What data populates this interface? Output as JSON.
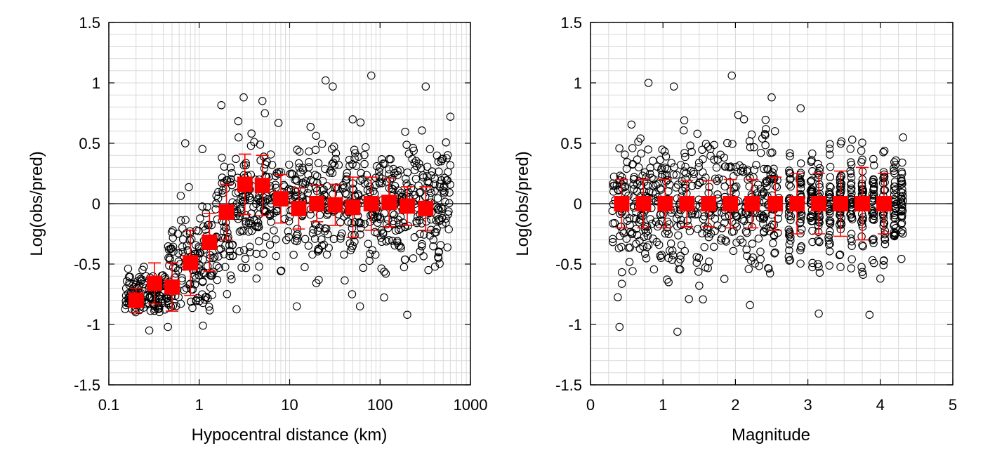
{
  "chart_data": [
    {
      "type": "scatter",
      "title": "",
      "xlabel": "Hypocentral distance (km)",
      "ylabel": "Log(obs/pred)",
      "xscale": "log",
      "xlim": [
        0.1,
        1000
      ],
      "ylim": [
        -1.5,
        1.5
      ],
      "xticks": [
        "0.1",
        "1",
        "10",
        "100",
        "1000"
      ],
      "yticks": [
        "-1.5",
        "-1",
        "-0.5",
        "0",
        "0.5",
        "1",
        "1.5"
      ],
      "grid": true,
      "reference_line_y": 0,
      "scatter_marker": "open-circle",
      "scatter_color": "#000000",
      "binned_marker": "filled-square",
      "binned_color": "#ff0000",
      "scatter_cloud": [
        {
          "x_range": [
            0.15,
            0.45
          ],
          "y_center": -0.78,
          "y_spread": 0.12
        },
        {
          "x_range": [
            0.45,
            1.5
          ],
          "y_center": -0.5,
          "y_spread": 0.25
        },
        {
          "x_range": [
            1.5,
            3.0
          ],
          "y_center": -0.15,
          "y_spread": 0.3
        },
        {
          "x_range": [
            3.0,
            600
          ],
          "y_center": 0.0,
          "y_spread": 0.25
        }
      ],
      "scatter_outliers": [
        {
          "x": 0.7,
          "y": 0.5
        },
        {
          "x": 3.1,
          "y": 0.88
        },
        {
          "x": 5.0,
          "y": 0.85
        },
        {
          "x": 25,
          "y": 1.02
        },
        {
          "x": 30,
          "y": 0.97
        },
        {
          "x": 80,
          "y": 1.06
        },
        {
          "x": 320,
          "y": 0.97
        },
        {
          "x": 200,
          "y": -0.92
        },
        {
          "x": 60,
          "y": -0.85
        },
        {
          "x": 0.45,
          "y": -1.02
        },
        {
          "x": 0.28,
          "y": -1.05
        },
        {
          "x": 1.1,
          "y": -1.01
        },
        {
          "x": 12,
          "y": -0.85
        },
        {
          "x": 600,
          "y": 0.72
        }
      ],
      "binned_means": [
        {
          "x": 0.2,
          "y": -0.8,
          "err": 0.1
        },
        {
          "x": 0.32,
          "y": -0.66,
          "err": 0.17
        },
        {
          "x": 0.5,
          "y": -0.69,
          "err": 0.2
        },
        {
          "x": 0.8,
          "y": -0.49,
          "err": 0.27
        },
        {
          "x": 1.3,
          "y": -0.32,
          "err": 0.24
        },
        {
          "x": 2.0,
          "y": -0.07,
          "err": 0.23
        },
        {
          "x": 3.2,
          "y": 0.16,
          "err": 0.25
        },
        {
          "x": 5.0,
          "y": 0.15,
          "err": 0.25
        },
        {
          "x": 8.0,
          "y": 0.04,
          "err": 0.2
        },
        {
          "x": 12.6,
          "y": -0.04,
          "err": 0.17
        },
        {
          "x": 20,
          "y": 0.0,
          "err": 0.15
        },
        {
          "x": 32,
          "y": -0.01,
          "err": 0.17
        },
        {
          "x": 50,
          "y": -0.03,
          "err": 0.25
        },
        {
          "x": 80,
          "y": 0.0,
          "err": 0.22
        },
        {
          "x": 126,
          "y": 0.01,
          "err": 0.2
        },
        {
          "x": 200,
          "y": -0.02,
          "err": 0.16
        },
        {
          "x": 320,
          "y": -0.04,
          "err": 0.18
        }
      ]
    },
    {
      "type": "scatter",
      "title": "",
      "xlabel": "Magnitude",
      "ylabel": "Log(obs/pred)",
      "xscale": "linear",
      "xlim": [
        0,
        5
      ],
      "ylim": [
        -1.5,
        1.5
      ],
      "xticks": [
        "0",
        "1",
        "2",
        "3",
        "4",
        "5"
      ],
      "yticks": [
        "-1.5",
        "-1",
        "-0.5",
        "0",
        "0.5",
        "1",
        "1.5"
      ],
      "grid": true,
      "reference_line_y": 0,
      "scatter_marker": "open-circle",
      "scatter_color": "#000000",
      "binned_marker": "filled-square",
      "binned_color": "#ff0000",
      "scatter_cloud": [
        {
          "x_range": [
            0.3,
            2.6
          ],
          "y_center": 0.0,
          "y_spread": 0.28
        }
      ],
      "scatter_columns": [
        2.75,
        2.9,
        3.05,
        3.15,
        3.3,
        3.45,
        3.6,
        3.75,
        3.9,
        4.05,
        4.2,
        4.3
      ],
      "scatter_outliers": [
        {
          "x": 0.8,
          "y": 1.0
        },
        {
          "x": 1.15,
          "y": 0.97
        },
        {
          "x": 1.95,
          "y": 1.06
        },
        {
          "x": 2.5,
          "y": 0.88
        },
        {
          "x": 1.2,
          "y": -1.06
        },
        {
          "x": 0.4,
          "y": -1.02
        },
        {
          "x": 3.15,
          "y": -0.91
        },
        {
          "x": 3.85,
          "y": -0.92
        },
        {
          "x": 4.0,
          "y": -0.62
        },
        {
          "x": 2.9,
          "y": 0.79
        }
      ],
      "binned_means": [
        {
          "x": 0.43,
          "y": 0.0,
          "err": 0.2
        },
        {
          "x": 0.73,
          "y": 0.0,
          "err": 0.2
        },
        {
          "x": 1.03,
          "y": 0.0,
          "err": 0.2
        },
        {
          "x": 1.33,
          "y": 0.0,
          "err": 0.19
        },
        {
          "x": 1.63,
          "y": 0.0,
          "err": 0.19
        },
        {
          "x": 1.93,
          "y": 0.0,
          "err": 0.2
        },
        {
          "x": 2.23,
          "y": 0.0,
          "err": 0.2
        },
        {
          "x": 2.55,
          "y": 0.0,
          "err": 0.22
        },
        {
          "x": 2.85,
          "y": 0.0,
          "err": 0.25
        },
        {
          "x": 3.15,
          "y": 0.0,
          "err": 0.25
        },
        {
          "x": 3.45,
          "y": 0.0,
          "err": 0.27
        },
        {
          "x": 3.75,
          "y": 0.0,
          "err": 0.3
        },
        {
          "x": 4.05,
          "y": 0.0,
          "err": 0.25
        }
      ]
    }
  ]
}
